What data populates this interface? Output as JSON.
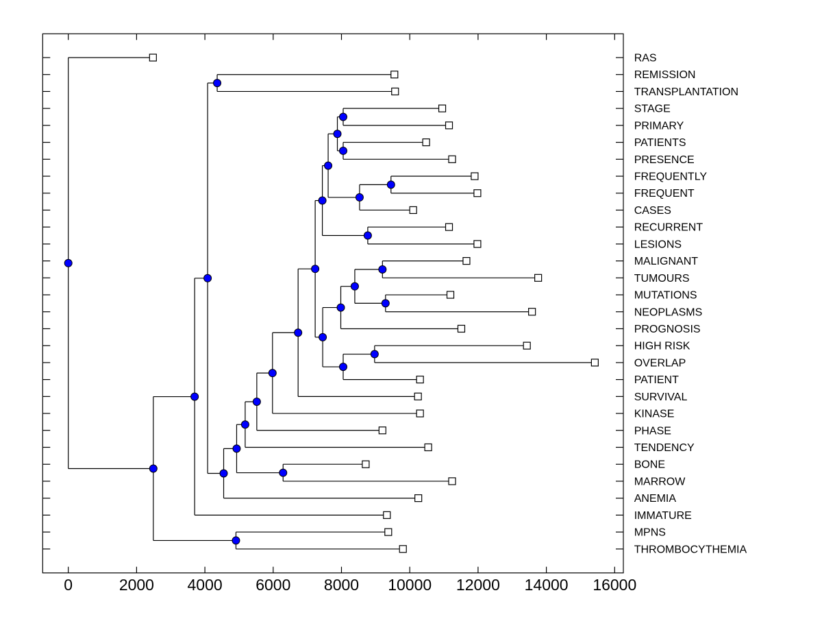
{
  "figure": {
    "background": "#ffffff",
    "line_color": "#000000",
    "text_color": "#000000",
    "internal_node_fill": "#0000ff",
    "internal_node_edge": "#000000",
    "leaf_marker_fill": "#ffffff",
    "leaf_marker_edge": "#000000"
  },
  "chart_data": {
    "type": "dendrogram",
    "subtype": "phylogenetic-tree-horizontal",
    "title": "",
    "xlabel": "",
    "ylabel": "",
    "grid": false,
    "x_axis_ticks": [
      0,
      2000,
      4000,
      6000,
      8000,
      10000,
      12000,
      14000,
      16000
    ],
    "xlim": [
      -760,
      16250
    ],
    "leaves_top_to_bottom": [
      "RAS",
      "REMISSION",
      "TRANSPLANTATION",
      "STAGE",
      "PRIMARY",
      "PATIENTS",
      "PRESENCE",
      "FREQUENTLY",
      "FREQUENT",
      "CASES",
      "RECURRENT",
      "LESIONS",
      "MALIGNANT",
      "TUMOURS",
      "MUTATIONS",
      "NEOPLASMS",
      "PROGNOSIS",
      "HIGH RISK",
      "OVERLAP",
      "PATIENT",
      "SURVIVAL",
      "KINASE",
      "PHASE",
      "TENDENCY",
      "BONE",
      "MARROW",
      "ANEMIA",
      "IMMATURE",
      "MPNS",
      "THROMBOCYTHEMIA"
    ],
    "tree": {
      "dist": 0,
      "children": [
        {
          "name": "RAS",
          "dist": 2480
        },
        {
          "dist": 2490,
          "children": [
            {
              "dist": 3700,
              "children": [
                {
                  "dist": 4080,
                  "children": [
                    {
                      "dist": 4360,
                      "children": [
                        {
                          "name": "REMISSION",
                          "dist": 9550
                        },
                        {
                          "name": "TRANSPLANTATION",
                          "dist": 9570
                        }
                      ]
                    },
                    {
                      "dist": 4550,
                      "children": [
                        {
                          "dist": 4930,
                          "children": [
                            {
                              "dist": 5180,
                              "children": [
                                {
                                  "dist": 5520,
                                  "children": [
                                    {
                                      "dist": 5980,
                                      "children": [
                                        {
                                          "dist": 6730,
                                          "children": [
                                            {
                                              "dist": 7230,
                                              "children": [
                                                {
                                                  "dist": 7440,
                                                  "children": [
                                                    {
                                                      "dist": 7610,
                                                      "children": [
                                                        {
                                                          "dist": 7880,
                                                          "children": [
                                                            {
                                                              "dist": 8050,
                                                              "children": [
                                                                {
                                                                  "name": "STAGE",
                                                                  "dist": 10950
                                                                },
                                                                {
                                                                  "name": "PRIMARY",
                                                                  "dist": 11150
                                                                }
                                                              ]
                                                            },
                                                            {
                                                              "dist": 8050,
                                                              "children": [
                                                                {
                                                                  "name": "PATIENTS",
                                                                  "dist": 10480
                                                                },
                                                                {
                                                                  "name": "PRESENCE",
                                                                  "dist": 11240
                                                                }
                                                              ]
                                                            }
                                                          ]
                                                        },
                                                        {
                                                          "dist": 8530,
                                                          "children": [
                                                            {
                                                              "dist": 9450,
                                                              "children": [
                                                                {
                                                                  "name": "FREQUENTLY",
                                                                  "dist": 11900
                                                                },
                                                                {
                                                                  "name": "FREQUENT",
                                                                  "dist": 11980
                                                                }
                                                              ]
                                                            },
                                                            {
                                                              "name": "CASES",
                                                              "dist": 10100
                                                            }
                                                          ]
                                                        }
                                                      ]
                                                    },
                                                    {
                                                      "dist": 8770,
                                                      "children": [
                                                        {
                                                          "name": "RECURRENT",
                                                          "dist": 11150
                                                        },
                                                        {
                                                          "name": "LESIONS",
                                                          "dist": 11980
                                                        }
                                                      ]
                                                    }
                                                  ]
                                                },
                                                {
                                                  "dist": 7450,
                                                  "children": [
                                                    {
                                                      "dist": 7980,
                                                      "children": [
                                                        {
                                                          "dist": 8390,
                                                          "children": [
                                                            {
                                                              "dist": 9200,
                                                              "children": [
                                                                {
                                                                  "name": "MALIGNANT",
                                                                  "dist": 11660
                                                                },
                                                                {
                                                                  "name": "TUMOURS",
                                                                  "dist": 13760
                                                                }
                                                              ]
                                                            },
                                                            {
                                                              "dist": 9290,
                                                              "children": [
                                                                {
                                                                  "name": "MUTATIONS",
                                                                  "dist": 11190
                                                                },
                                                                {
                                                                  "name": "NEOPLASMS",
                                                                  "dist": 13580
                                                                }
                                                              ]
                                                            }
                                                          ]
                                                        },
                                                        {
                                                          "name": "PROGNOSIS",
                                                          "dist": 11510
                                                        }
                                                      ]
                                                    },
                                                    {
                                                      "dist": 8050,
                                                      "children": [
                                                        {
                                                          "dist": 8970,
                                                          "children": [
                                                            {
                                                              "name": "HIGH RISK",
                                                              "dist": 13430
                                                            },
                                                            {
                                                              "name": "OVERLAP",
                                                              "dist": 15420
                                                            }
                                                          ]
                                                        },
                                                        {
                                                          "name": "PATIENT",
                                                          "dist": 10300
                                                        }
                                                      ]
                                                    }
                                                  ]
                                                }
                                              ]
                                            },
                                            {
                                              "name": "SURVIVAL",
                                              "dist": 10240
                                            }
                                          ]
                                        },
                                        {
                                          "name": "KINASE",
                                          "dist": 10300
                                        }
                                      ]
                                    },
                                    {
                                      "name": "PHASE",
                                      "dist": 9200
                                    }
                                  ]
                                },
                                {
                                  "name": "TENDENCY",
                                  "dist": 10540
                                }
                              ]
                            },
                            {
                              "dist": 6290,
                              "children": [
                                {
                                  "name": "BONE",
                                  "dist": 8710
                                },
                                {
                                  "name": "MARROW",
                                  "dist": 11240
                                }
                              ]
                            }
                          ]
                        },
                        {
                          "name": "ANEMIA",
                          "dist": 10250
                        }
                      ]
                    }
                  ]
                },
                {
                  "name": "IMMATURE",
                  "dist": 9330
                }
              ]
            },
            {
              "dist": 4910,
              "children": [
                {
                  "name": "MPNS",
                  "dist": 9370
                },
                {
                  "name": "THROMBOCYTHEMIA",
                  "dist": 9800
                }
              ]
            }
          ]
        }
      ]
    }
  }
}
